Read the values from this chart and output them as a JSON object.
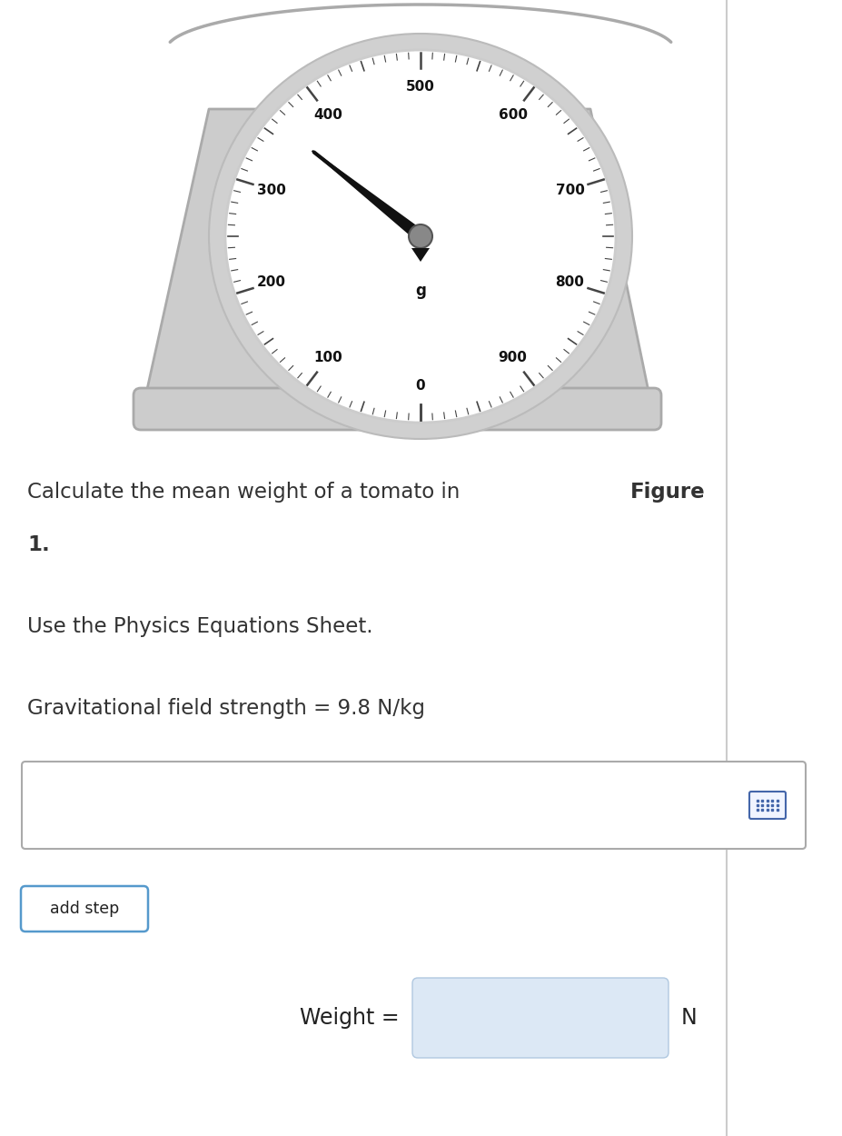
{
  "bg_color": "#ffffff",
  "scale_body_color": "#cccccc",
  "scale_body_edge": "#aaaaaa",
  "dial_face_color": "#ffffff",
  "outer_ring_color": "#d8d8d8",
  "tick_labels": [
    "0",
    "100",
    "200",
    "300",
    "400",
    "500",
    "600",
    "700",
    "800",
    "900"
  ],
  "tick_values": [
    0,
    100,
    200,
    300,
    400,
    500,
    600,
    700,
    800,
    900
  ],
  "dial_unit": "g",
  "needle_value": 360,
  "needle_color": "#111111",
  "pivot_color": "#888888",
  "pivot_edge": "#555555",
  "text_color": "#333333",
  "text1_normal": "Calculate the mean weight of a tomato in ",
  "text1_bold": "Figure",
  "text2": "1.",
  "text3": "Use the Physics Equations Sheet.",
  "text4": "Gravitational field strength = 9.8 N/kg",
  "input_box_edge": "#aaaaaa",
  "answer_box_color": "#dce8f5",
  "answer_box_edge": "#b0c8e0",
  "add_step_text": "add step",
  "add_step_border": "#5599cc",
  "weight_label": "Weight = ",
  "weight_unit": "N",
  "keyboard_icon_color": "#4466aa",
  "fig_width": 9.27,
  "fig_height": 12.5
}
